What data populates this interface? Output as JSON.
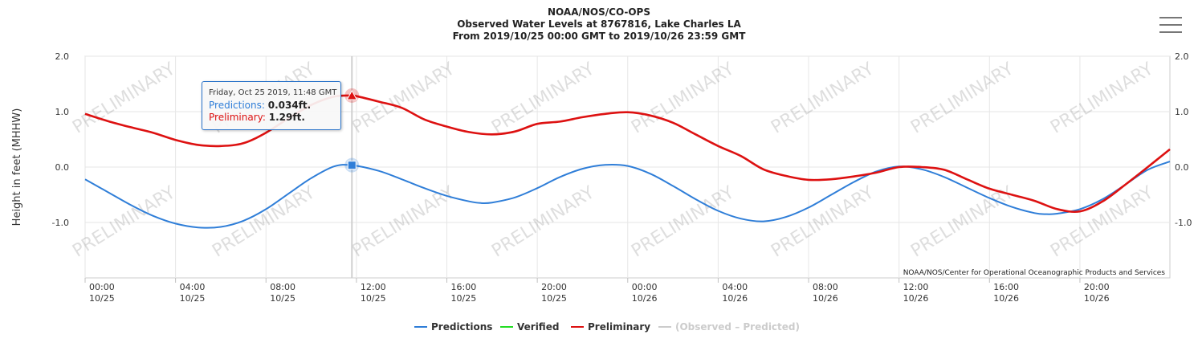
{
  "header": {
    "agency": "NOAA/NOS/CO-OPS",
    "station_title": "Observed Water Levels at 8767816, Lake Charles LA",
    "date_range": "From 2019/10/25 00:00 GMT to 2019/10/26 23:59 GMT"
  },
  "menu": {
    "icon": "hamburger-menu-icon"
  },
  "chart_data": {
    "type": "line",
    "ylabel": "Height in feet (MHHW)",
    "ylim": [
      -2.0,
      2.0
    ],
    "y_ticks": [
      {
        "value": 2.0,
        "label": "2.0"
      },
      {
        "value": 1.0,
        "label": "1.0"
      },
      {
        "value": 0.0,
        "label": "0.0"
      },
      {
        "value": -1.0,
        "label": "-1.0"
      }
    ],
    "x_range_hours": [
      0,
      47.98
    ],
    "x_ticks": [
      {
        "hour": 0,
        "time": "00:00",
        "date": "10/25"
      },
      {
        "hour": 4,
        "time": "04:00",
        "date": "10/25"
      },
      {
        "hour": 8,
        "time": "08:00",
        "date": "10/25"
      },
      {
        "hour": 12,
        "time": "12:00",
        "date": "10/25"
      },
      {
        "hour": 16,
        "time": "16:00",
        "date": "10/25"
      },
      {
        "hour": 20,
        "time": "20:00",
        "date": "10/25"
      },
      {
        "hour": 24,
        "time": "00:00",
        "date": "10/26"
      },
      {
        "hour": 28,
        "time": "04:00",
        "date": "10/26"
      },
      {
        "hour": 32,
        "time": "08:00",
        "date": "10/26"
      },
      {
        "hour": 36,
        "time": "12:00",
        "date": "10/26"
      },
      {
        "hour": 40,
        "time": "16:00",
        "date": "10/26"
      },
      {
        "hour": 44,
        "time": "20:00",
        "date": "10/26"
      }
    ],
    "grid": true,
    "legend_position": "bottom-center",
    "series": [
      {
        "name": "Predictions",
        "color": "#2f7ed8",
        "hours": [
          0,
          1,
          2,
          3,
          4,
          5,
          6,
          7,
          8,
          9,
          10,
          11,
          11.8,
          13,
          14,
          15,
          16,
          17,
          17.5,
          18,
          19,
          20,
          21,
          22,
          23,
          24,
          25,
          26,
          27,
          28,
          29,
          30,
          31,
          32,
          33,
          34,
          35,
          36,
          37,
          38,
          39,
          40,
          41,
          42,
          42.5,
          43,
          44,
          45,
          46,
          47,
          48
        ],
        "values": [
          -0.22,
          -0.45,
          -0.68,
          -0.88,
          -1.02,
          -1.09,
          -1.08,
          -0.97,
          -0.76,
          -0.48,
          -0.2,
          0.01,
          0.034,
          -0.07,
          -0.22,
          -0.38,
          -0.52,
          -0.62,
          -0.65,
          -0.64,
          -0.55,
          -0.38,
          -0.18,
          -0.03,
          0.04,
          0.02,
          -0.12,
          -0.34,
          -0.58,
          -0.79,
          -0.93,
          -0.98,
          -0.9,
          -0.73,
          -0.5,
          -0.27,
          -0.08,
          0.01,
          -0.04,
          -0.18,
          -0.37,
          -0.56,
          -0.72,
          -0.83,
          -0.85,
          -0.84,
          -0.76,
          -0.58,
          -0.32,
          -0.05,
          0.1
        ]
      },
      {
        "name": "Verified",
        "color": "#22dd22",
        "hours": [],
        "values": []
      },
      {
        "name": "Preliminary",
        "color": "#dd1111",
        "hours": [
          0,
          1,
          2,
          3,
          4,
          5,
          6,
          7,
          8,
          9,
          10,
          11,
          11.8,
          12,
          13,
          14,
          15,
          16,
          17,
          18,
          19,
          20,
          21,
          22,
          23,
          24,
          25,
          26,
          27,
          28,
          29,
          30,
          31,
          32,
          33,
          34,
          35,
          36,
          37,
          38,
          39,
          40,
          41,
          42,
          43,
          44,
          45,
          46,
          47,
          48
        ],
        "values": [
          0.96,
          0.83,
          0.72,
          0.62,
          0.49,
          0.4,
          0.38,
          0.43,
          0.62,
          0.88,
          1.12,
          1.27,
          1.29,
          1.28,
          1.18,
          1.07,
          0.86,
          0.73,
          0.63,
          0.59,
          0.64,
          0.78,
          0.82,
          0.9,
          0.96,
          0.99,
          0.93,
          0.8,
          0.59,
          0.38,
          0.2,
          -0.04,
          -0.16,
          -0.23,
          -0.22,
          -0.17,
          -0.1,
          0.0,
          0.0,
          -0.05,
          -0.22,
          -0.39,
          -0.5,
          -0.61,
          -0.76,
          -0.8,
          -0.62,
          -0.32,
          0.0,
          0.32
        ]
      },
      {
        "name": "(Observed – Predicted)",
        "color": "#cccccc",
        "hidden": true,
        "hours": [],
        "values": []
      }
    ],
    "watermark_text": "PRELIMINARY",
    "credit": "NOAA/NOS/Center for Operational Oceanographic Products and Services",
    "crosshair_hour": 11.8
  },
  "tooltip": {
    "date": "Friday, Oct 25 2019, 11:48 GMT",
    "predictions_label": "Predictions:",
    "predictions_value": "0.034ft.",
    "preliminary_label": "Preliminary:",
    "preliminary_value": "1.29ft."
  },
  "legend": {
    "items": [
      {
        "label": "Predictions",
        "color": "#2f7ed8",
        "hidden": false
      },
      {
        "label": "Verified",
        "color": "#22dd22",
        "hidden": false
      },
      {
        "label": "Preliminary",
        "color": "#dd1111",
        "hidden": false
      },
      {
        "label": "(Observed – Predicted)",
        "color": "#cccccc",
        "hidden": true
      }
    ]
  }
}
